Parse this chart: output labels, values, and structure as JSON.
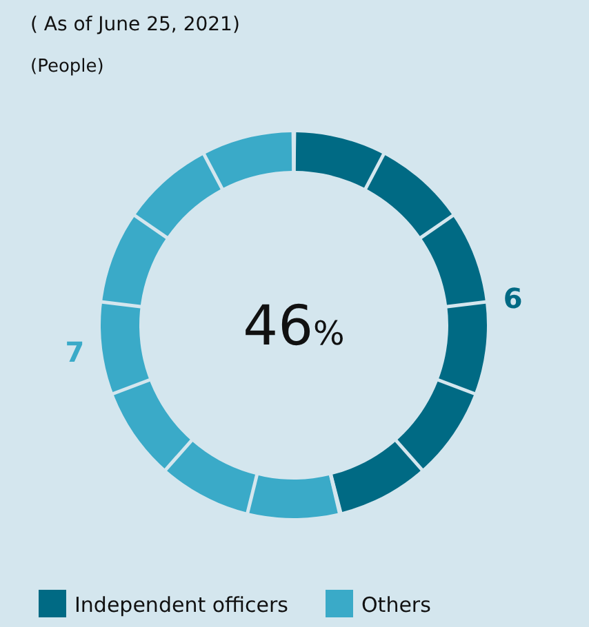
{
  "chart_data": {
    "type": "donut",
    "title": "( As of June 25, 2021)",
    "subtitle": "(People)",
    "categories": [
      "Independent officers",
      "Others"
    ],
    "values": [
      6,
      7
    ],
    "colors": [
      "#006a84",
      "#3aaac8"
    ],
    "data_labels": true,
    "annotations": [
      "46%"
    ],
    "legend": "bottom"
  }
}
